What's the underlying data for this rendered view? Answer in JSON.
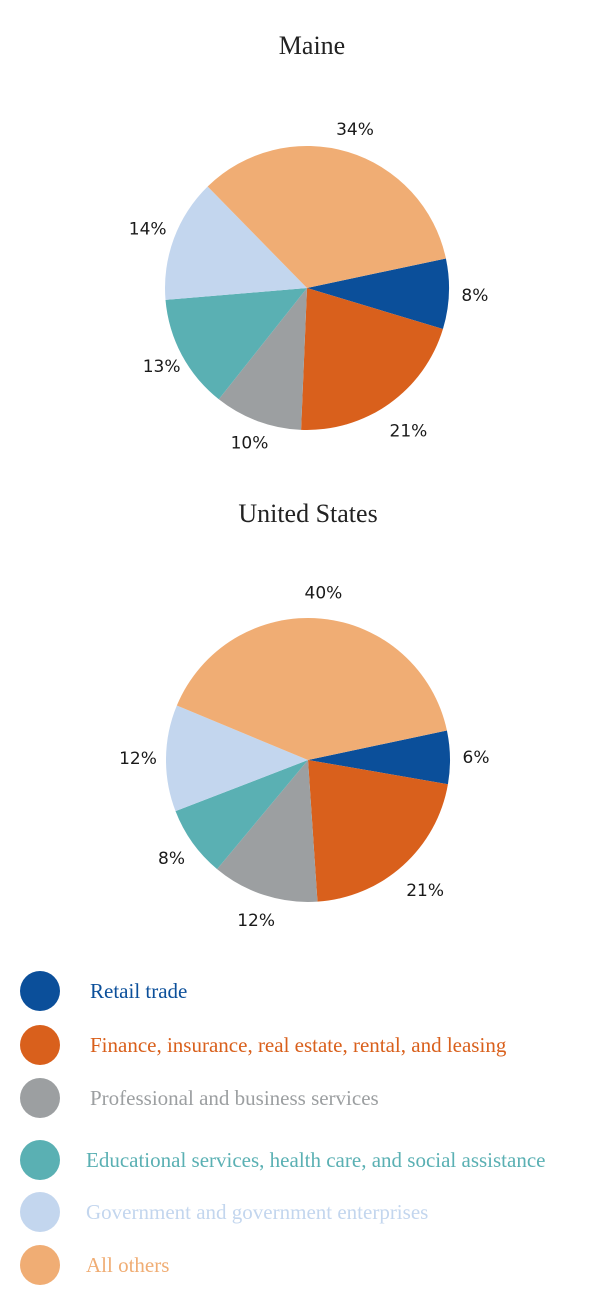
{
  "chart_data": [
    {
      "type": "pie",
      "title": "Maine",
      "categories": [
        "Retail trade",
        "Finance, insurance, real estate, rental, and leasing",
        "Professional and business services",
        "Educational services, health care, and social assistance",
        "Government and government enterprises",
        "All others"
      ],
      "values": [
        8,
        21,
        10,
        13,
        14,
        34
      ],
      "labels": [
        "8%",
        "21%",
        "10%",
        "13%",
        "14%",
        "34%"
      ]
    },
    {
      "type": "pie",
      "title": "United States",
      "categories": [
        "Retail trade",
        "Finance, insurance, real estate, rental, and leasing",
        "Professional and business services",
        "Educational services, health care, and social assistance",
        "Government and government enterprises",
        "All others"
      ],
      "values": [
        6,
        21,
        12,
        8,
        12,
        40
      ],
      "labels": [
        "6%",
        "21%",
        "12%",
        "8%",
        "12%",
        "40%"
      ]
    }
  ],
  "legend": [
    {
      "label": "Retail trade",
      "color": "#0b4f9a"
    },
    {
      "label": "Finance, insurance, real estate, rental, and leasing",
      "color": "#d9601c"
    },
    {
      "label": "Professional and business services",
      "color": "#9c9fa1"
    },
    {
      "label": "Educational services, health care, and social assistance",
      "color": "#5ab0b3"
    },
    {
      "label": "Government and government enterprises",
      "color": "#c3d6ee"
    },
    {
      "label": "All others",
      "color": "#f0ad74"
    }
  ]
}
